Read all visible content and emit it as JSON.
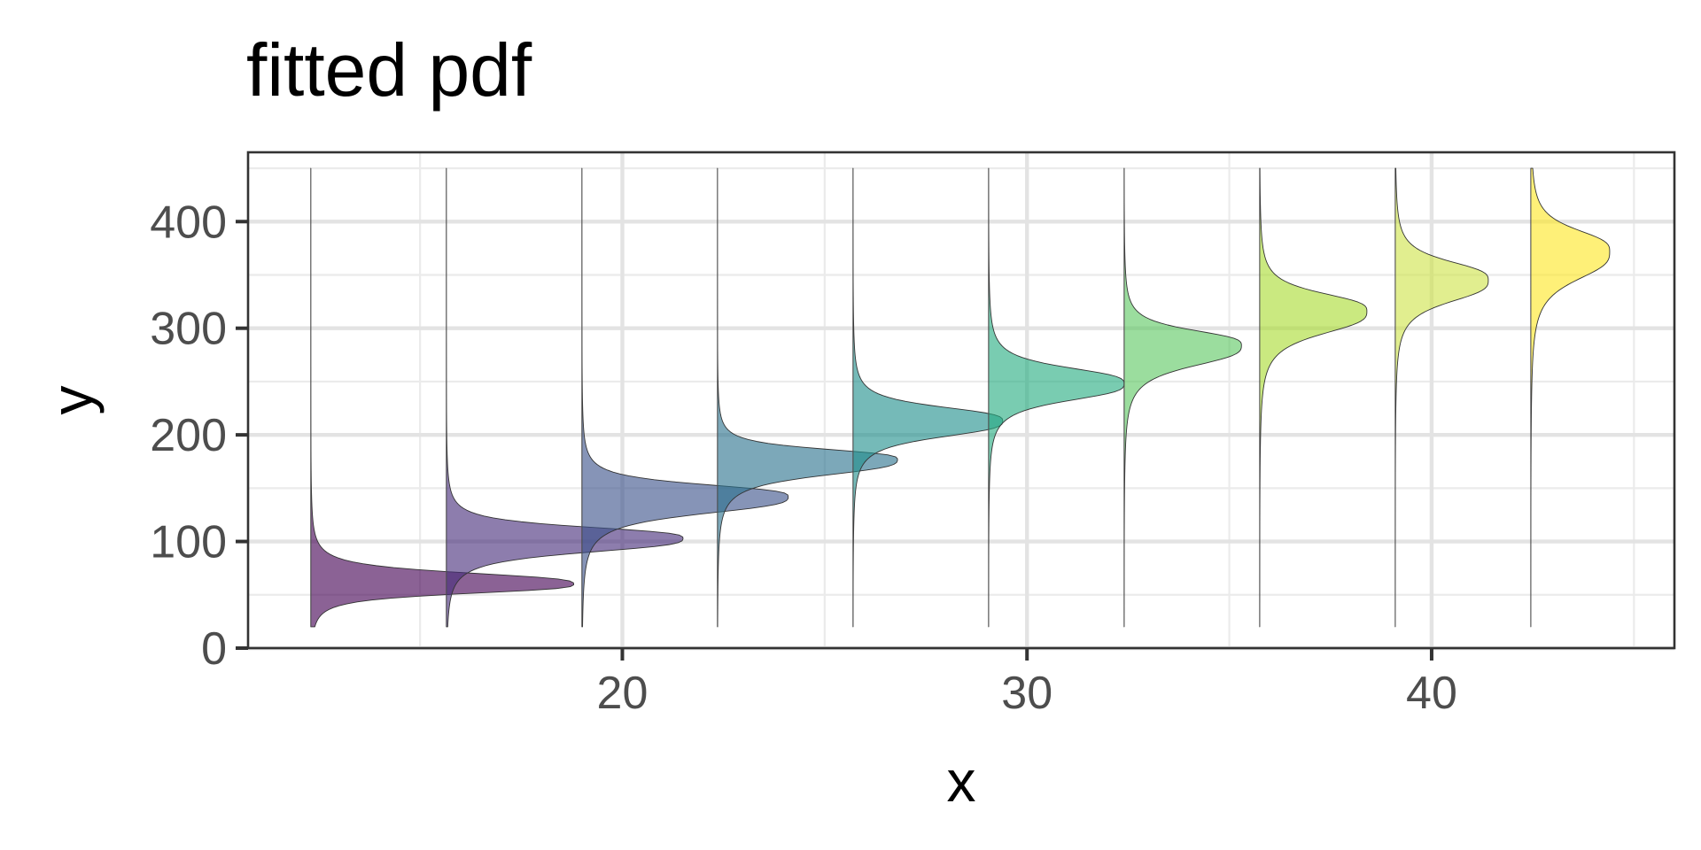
{
  "chart_data": {
    "type": "ridgeline",
    "title": "fitted pdf",
    "xlabel": "x",
    "ylabel": "y",
    "xlim": [
      10.75,
      46.0
    ],
    "ylim": [
      0,
      465
    ],
    "x_ticks": [
      20,
      30,
      40
    ],
    "y_ticks": [
      0,
      100,
      200,
      300,
      400
    ],
    "x_minor_ticks": [
      15,
      25,
      35,
      45
    ],
    "y_minor_ticks": [
      50,
      150,
      250,
      350,
      450
    ],
    "grid": true,
    "legend": "none",
    "y_support": [
      20,
      450
    ],
    "densities": [
      {
        "x_base": 12.3,
        "y_mode": 60,
        "y_upper": 72,
        "y_lower": 50,
        "peak_x": 18.8,
        "color": "#440154"
      },
      {
        "x_base": 15.65,
        "y_mode": 103,
        "y_upper": 115,
        "y_lower": 88,
        "peak_x": 21.5,
        "color": "#472D7B"
      },
      {
        "x_base": 19.0,
        "y_mode": 142,
        "y_upper": 155,
        "y_lower": 124,
        "peak_x": 24.1,
        "color": "#3B528B"
      },
      {
        "x_base": 22.35,
        "y_mode": 177,
        "y_upper": 188,
        "y_lower": 160,
        "peak_x": 26.8,
        "color": "#2C728E"
      },
      {
        "x_base": 25.7,
        "y_mode": 213,
        "y_upper": 228,
        "y_lower": 196,
        "peak_x": 29.4,
        "color": "#21908C"
      },
      {
        "x_base": 29.05,
        "y_mode": 248,
        "y_upper": 265,
        "y_lower": 230,
        "peak_x": 32.4,
        "color": "#27AD81"
      },
      {
        "x_base": 32.4,
        "y_mode": 284,
        "y_upper": 300,
        "y_lower": 262,
        "peak_x": 35.3,
        "color": "#5DC863"
      },
      {
        "x_base": 35.75,
        "y_mode": 316,
        "y_upper": 335,
        "y_lower": 292,
        "peak_x": 38.4,
        "color": "#AADC32"
      },
      {
        "x_base": 39.1,
        "y_mode": 345,
        "y_upper": 365,
        "y_lower": 322,
        "peak_x": 41.4,
        "color": "#CEE44A"
      },
      {
        "x_base": 42.45,
        "y_mode": 372,
        "y_upper": 395,
        "y_lower": 342,
        "peak_x": 44.4,
        "color": "#FDE725"
      }
    ]
  }
}
